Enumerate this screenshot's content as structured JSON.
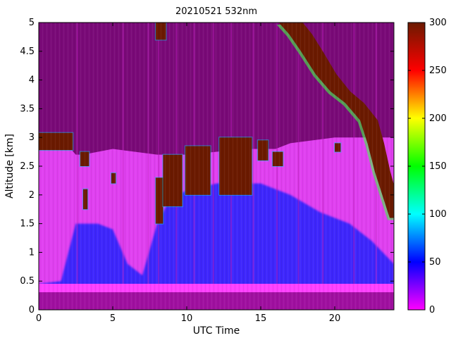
{
  "chart_data": {
    "type": "heatmap",
    "title": "20210521 532nm",
    "xlabel": "UTC Time",
    "ylabel": "Altitude [km]",
    "xlim": [
      0,
      24
    ],
    "ylim": [
      0,
      5
    ],
    "xticks": [
      0,
      5,
      10,
      15,
      20
    ],
    "yticks": [
      0,
      0.5,
      1,
      1.5,
      2,
      2.5,
      3,
      3.5,
      4,
      4.5,
      5
    ],
    "colorbar": {
      "range": [
        0,
        300
      ],
      "ticks": [
        0,
        50,
        100,
        150,
        200,
        250,
        300
      ],
      "colormap": [
        "#ff00ff",
        "#0000ff",
        "#00ffff",
        "#00ff00",
        "#ffff00",
        "#ff0000",
        "#6b1a00"
      ]
    },
    "colors": {
      "aerosol_layer": "#e040f0",
      "clean_air": "#7a0a78",
      "cloud": "#6b1a00",
      "boundary_layer": "#2020ff",
      "surface_band": "#ff40ff",
      "bottom_band": "#a010a0"
    },
    "features": {
      "aerosol_top_km": [
        {
          "t": 0,
          "h": 3.0
        },
        {
          "t": 1,
          "h": 2.95
        },
        {
          "t": 2,
          "h": 2.85
        },
        {
          "t": 2.5,
          "h": 2.7
        },
        {
          "t": 3,
          "h": 2.7
        },
        {
          "t": 5,
          "h": 2.8
        },
        {
          "t": 8,
          "h": 2.7
        },
        {
          "t": 10,
          "h": 2.7
        },
        {
          "t": 14,
          "h": 2.8
        },
        {
          "t": 16,
          "h": 2.8
        },
        {
          "t": 17,
          "h": 2.9
        },
        {
          "t": 20,
          "h": 3.0
        },
        {
          "t": 22,
          "h": 3.0
        },
        {
          "t": 24,
          "h": 3.0
        }
      ],
      "blue_top_km": [
        {
          "t": 0,
          "h": 0.45
        },
        {
          "t": 1.5,
          "h": 0.5
        },
        {
          "t": 2.5,
          "h": 1.5
        },
        {
          "t": 4,
          "h": 1.5
        },
        {
          "t": 5,
          "h": 1.4
        },
        {
          "t": 6,
          "h": 0.8
        },
        {
          "t": 7,
          "h": 0.6
        },
        {
          "t": 8,
          "h": 1.5
        },
        {
          "t": 9,
          "h": 2.0
        },
        {
          "t": 12,
          "h": 2.2
        },
        {
          "t": 15,
          "h": 2.2
        },
        {
          "t": 17,
          "h": 2.0
        },
        {
          "t": 19,
          "h": 1.7
        },
        {
          "t": 21,
          "h": 1.5
        },
        {
          "t": 22.5,
          "h": 1.2
        },
        {
          "t": 24,
          "h": 0.8
        }
      ],
      "cloud_segments": [
        {
          "t0": 0,
          "t1": 2.3,
          "h0": 2.78,
          "h1": 3.08
        },
        {
          "t0": 2.8,
          "t1": 3.4,
          "h0": 2.5,
          "h1": 2.75
        },
        {
          "t0": 3.0,
          "t1": 3.3,
          "h0": 1.75,
          "h1": 2.1
        },
        {
          "t0": 4.9,
          "t1": 5.2,
          "h0": 2.2,
          "h1": 2.38
        },
        {
          "t0": 7.9,
          "t1": 8.4,
          "h0": 1.5,
          "h1": 2.3
        },
        {
          "t0": 8.4,
          "t1": 9.7,
          "h0": 1.8,
          "h1": 2.7
        },
        {
          "t0": 9.9,
          "t1": 11.6,
          "h0": 2.0,
          "h1": 2.85
        },
        {
          "t0": 12.2,
          "t1": 14.4,
          "h0": 2.0,
          "h1": 3.0
        },
        {
          "t0": 14.8,
          "t1": 15.5,
          "h0": 2.6,
          "h1": 2.95
        },
        {
          "t0": 15.8,
          "t1": 16.5,
          "h0": 2.5,
          "h1": 2.75
        },
        {
          "t0": 7.9,
          "t1": 8.6,
          "h0": 4.7,
          "h1": 5.0
        },
        {
          "t0": 20.0,
          "t1": 20.4,
          "h0": 2.75,
          "h1": 2.9
        }
      ],
      "cloud_diagonal": [
        {
          "t": 16.5,
          "h": 5.0
        },
        {
          "t": 17.2,
          "h": 4.8
        },
        {
          "t": 18.0,
          "h": 4.5
        },
        {
          "t": 19.0,
          "h": 4.1
        },
        {
          "t": 20.0,
          "h": 3.8
        },
        {
          "t": 21.0,
          "h": 3.6
        },
        {
          "t": 22.0,
          "h": 3.3
        },
        {
          "t": 22.5,
          "h": 2.9
        },
        {
          "t": 23.0,
          "h": 2.4
        },
        {
          "t": 23.5,
          "h": 2.0
        },
        {
          "t": 24.0,
          "h": 1.6
        }
      ],
      "vertical_streaks_utc": [
        2.6,
        5.7,
        7.4,
        8.1,
        9.3,
        10.5,
        11.8,
        13.0,
        14.5,
        16.1,
        17.55,
        19.2,
        21.3,
        22.8
      ]
    }
  }
}
